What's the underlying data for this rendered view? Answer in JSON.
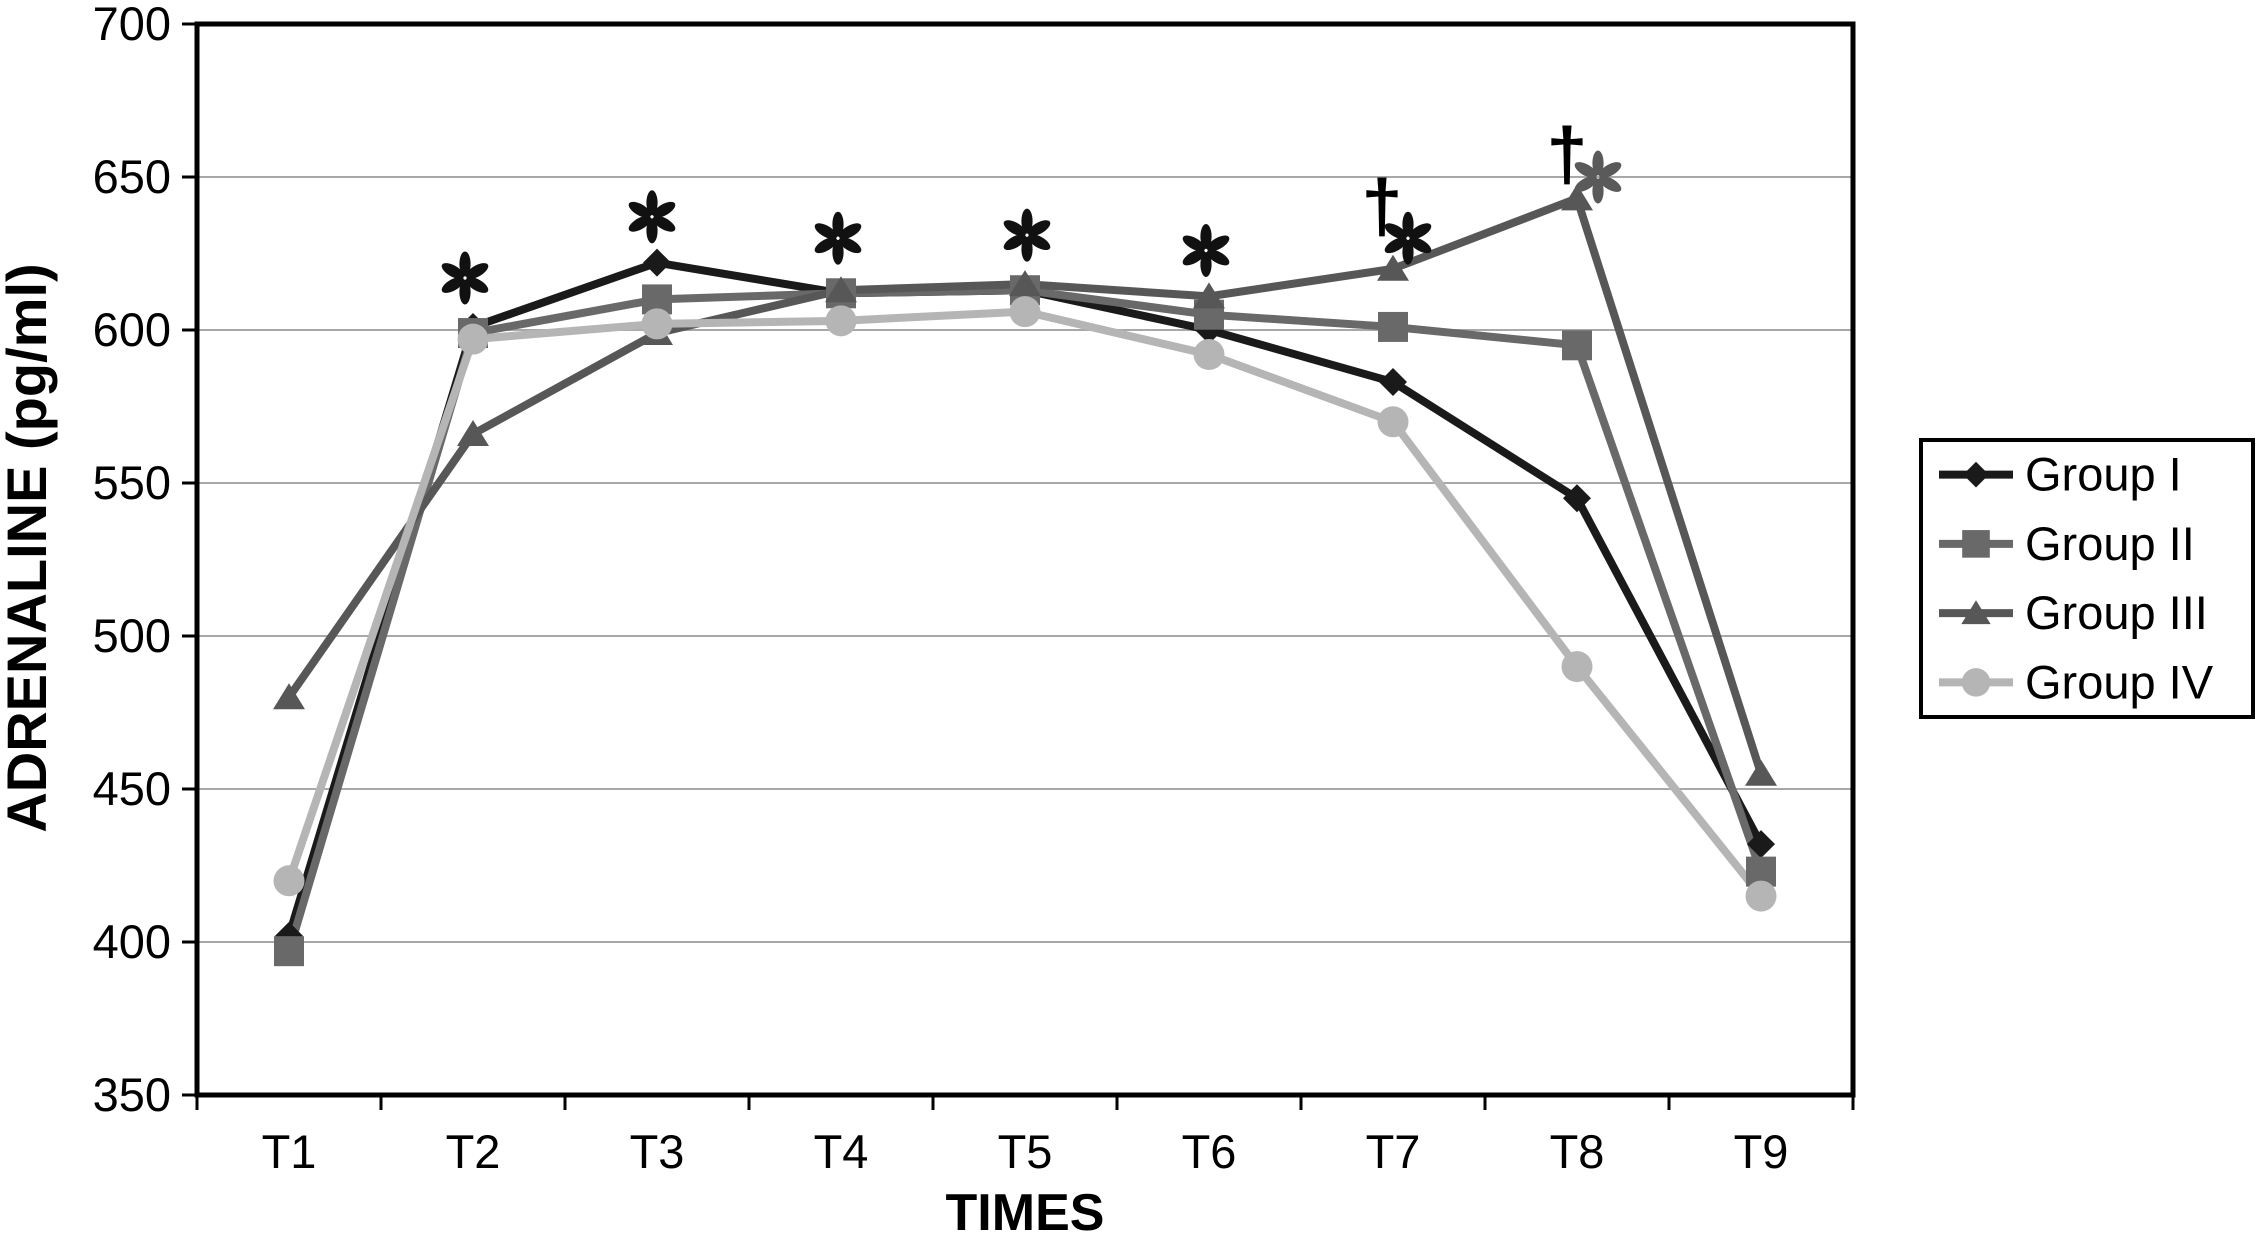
{
  "figure": {
    "background": "#ffffff",
    "frame_color": "#000000",
    "grid_color": "#a8a8a8",
    "tick_color": "#000000"
  },
  "chart_data": {
    "type": "line",
    "title": "",
    "xlabel": "TIMES",
    "ylabel": "ADRENALINE (pg/ml)",
    "categories": [
      "T1",
      "T2",
      "T3",
      "T4",
      "T5",
      "T6",
      "T7",
      "T8",
      "T9"
    ],
    "ylim": [
      350,
      700
    ],
    "ytick_step": 50,
    "yticks": [
      350,
      400,
      450,
      500,
      550,
      600,
      650,
      700
    ],
    "grid": "horizontal",
    "legend_position": "right",
    "series": [
      {
        "name": "Group I",
        "marker": "diamond",
        "color": "#1a1a1a",
        "values": [
          402,
          601,
          622,
          612,
          613,
          600,
          583,
          545,
          432
        ]
      },
      {
        "name": "Group II",
        "marker": "square",
        "color": "#696969",
        "values": [
          397,
          599,
          610,
          612,
          613,
          605,
          601,
          595,
          423
        ]
      },
      {
        "name": "Group III",
        "marker": "triangle",
        "color": "#575757",
        "values": [
          480,
          566,
          599,
          613,
          615,
          611,
          620,
          643,
          455
        ]
      },
      {
        "name": "Group IV",
        "marker": "circle",
        "color": "#b5b5b5",
        "values": [
          420,
          597,
          602,
          603,
          606,
          592,
          570,
          490,
          415
        ]
      }
    ],
    "annotations": [
      {
        "symbol": "*",
        "meaning": "asterisk",
        "category": "T2",
        "t": 1,
        "dx": -8,
        "value": 617,
        "color": "#111111"
      },
      {
        "symbol": "*",
        "meaning": "asterisk",
        "category": "T3",
        "t": 2,
        "dx": -5,
        "value": 637,
        "color": "#111111"
      },
      {
        "symbol": "*",
        "meaning": "asterisk",
        "category": "T4",
        "t": 3,
        "dx": -3,
        "value": 630,
        "color": "#111111"
      },
      {
        "symbol": "*",
        "meaning": "asterisk",
        "category": "T5",
        "t": 4,
        "dx": 2,
        "value": 631,
        "color": "#111111"
      },
      {
        "symbol": "*",
        "meaning": "asterisk",
        "category": "T6",
        "t": 5,
        "dx": -3,
        "value": 626,
        "color": "#111111"
      },
      {
        "symbol": "†",
        "meaning": "dagger",
        "category": "T7",
        "t": 6,
        "dx": -11,
        "value": 640,
        "color": "#5a5a5a"
      },
      {
        "symbol": "*",
        "meaning": "asterisk",
        "category": "T7",
        "t": 6,
        "dx": 15,
        "value": 630,
        "color": "#111111"
      },
      {
        "symbol": "†",
        "meaning": "dagger",
        "category": "T8",
        "t": 7,
        "dx": -10,
        "value": 657,
        "color": "#5a5a5a"
      },
      {
        "symbol": "*",
        "meaning": "asterisk",
        "category": "T8",
        "t": 7,
        "dx": 21,
        "value": 650,
        "color": "#5a5a5a"
      }
    ],
    "legend": {
      "entries": [
        "Group I",
        "Group II",
        "Group III",
        "Group IV"
      ],
      "border_color": "#000000"
    }
  }
}
